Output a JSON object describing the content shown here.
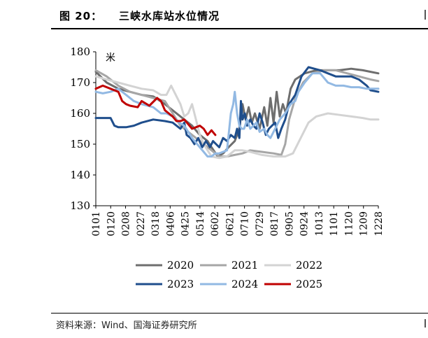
{
  "figure": {
    "label": "图 20：",
    "title": "三峡水库站水位情况",
    "source": "资料来源：Wind、国海证券研究所"
  },
  "chart_data": {
    "type": "line",
    "title": "三峡水库站水位情况",
    "unit": "米",
    "ylabel": "米",
    "xlabel": "",
    "ylim": [
      130,
      180
    ],
    "yticks": [
      130,
      140,
      150,
      160,
      170,
      180
    ],
    "xticks": [
      "0101",
      "0120",
      "0208",
      "0227",
      "0318",
      "0406",
      "0425",
      "0514",
      "0602",
      "0621",
      "0710",
      "0729",
      "0817",
      "0905",
      "0924",
      "1013",
      "1101",
      "1120",
      "1209",
      "1228"
    ],
    "x_domain": [
      1,
      365
    ],
    "legend_position": "bottom",
    "colors": {
      "2020": "#6e6e6e",
      "2021": "#a6a6a6",
      "2022": "#d3d3d3",
      "2023": "#1f4e8c",
      "2024": "#92b9e3",
      "2025": "#c00000"
    },
    "series": [
      {
        "name": "2020",
        "points": [
          [
            1,
            173.5
          ],
          [
            15,
            170
          ],
          [
            30,
            168
          ],
          [
            45,
            167
          ],
          [
            60,
            166
          ],
          [
            75,
            165.5
          ],
          [
            90,
            163
          ],
          [
            105,
            160
          ],
          [
            115,
            158
          ],
          [
            125,
            156
          ],
          [
            135,
            153
          ],
          [
            145,
            151
          ],
          [
            150,
            149
          ],
          [
            158,
            146
          ],
          [
            165,
            147
          ],
          [
            172,
            149
          ],
          [
            180,
            151
          ],
          [
            186,
            155
          ],
          [
            190,
            163
          ],
          [
            194,
            158
          ],
          [
            198,
            162
          ],
          [
            202,
            157
          ],
          [
            206,
            160
          ],
          [
            212,
            155
          ],
          [
            218,
            162
          ],
          [
            222,
            156
          ],
          [
            226,
            165
          ],
          [
            230,
            157
          ],
          [
            234,
            167
          ],
          [
            238,
            159
          ],
          [
            242,
            163
          ],
          [
            246,
            160
          ],
          [
            252,
            168
          ],
          [
            258,
            171
          ],
          [
            270,
            173
          ],
          [
            285,
            174
          ],
          [
            300,
            174
          ],
          [
            315,
            174
          ],
          [
            330,
            174.5
          ],
          [
            345,
            174
          ],
          [
            355,
            173.5
          ],
          [
            365,
            173
          ]
        ]
      },
      {
        "name": "2021",
        "points": [
          [
            1,
            174
          ],
          [
            15,
            172
          ],
          [
            30,
            169
          ],
          [
            45,
            167
          ],
          [
            60,
            166
          ],
          [
            75,
            165
          ],
          [
            90,
            164
          ],
          [
            100,
            160
          ],
          [
            110,
            156
          ],
          [
            120,
            154
          ],
          [
            130,
            152
          ],
          [
            140,
            150
          ],
          [
            150,
            148
          ],
          [
            160,
            146
          ],
          [
            170,
            146
          ],
          [
            180,
            146.5
          ],
          [
            190,
            147
          ],
          [
            200,
            148
          ],
          [
            215,
            147.5
          ],
          [
            230,
            147
          ],
          [
            240,
            146.5
          ],
          [
            245,
            150
          ],
          [
            250,
            158
          ],
          [
            258,
            165
          ],
          [
            268,
            170
          ],
          [
            280,
            173
          ],
          [
            295,
            174
          ],
          [
            310,
            174
          ],
          [
            325,
            173
          ],
          [
            340,
            172
          ],
          [
            355,
            171
          ],
          [
            365,
            170.5
          ]
        ]
      },
      {
        "name": "2022",
        "points": [
          [
            1,
            172
          ],
          [
            15,
            171
          ],
          [
            30,
            170
          ],
          [
            45,
            169
          ],
          [
            60,
            168
          ],
          [
            75,
            167.5
          ],
          [
            85,
            166
          ],
          [
            92,
            166
          ],
          [
            98,
            169
          ],
          [
            102,
            167
          ],
          [
            110,
            163
          ],
          [
            115,
            159
          ],
          [
            120,
            160
          ],
          [
            125,
            163
          ],
          [
            130,
            158
          ],
          [
            135,
            153
          ],
          [
            140,
            150
          ],
          [
            145,
            148
          ],
          [
            150,
            146
          ],
          [
            160,
            145.5
          ],
          [
            170,
            146
          ],
          [
            180,
            148
          ],
          [
            190,
            148
          ],
          [
            200,
            147.5
          ],
          [
            215,
            146.5
          ],
          [
            230,
            146
          ],
          [
            245,
            146
          ],
          [
            255,
            147
          ],
          [
            265,
            152
          ],
          [
            275,
            157
          ],
          [
            285,
            159
          ],
          [
            300,
            160
          ],
          [
            315,
            159.5
          ],
          [
            330,
            159
          ],
          [
            345,
            158.5
          ],
          [
            355,
            158
          ],
          [
            365,
            158
          ]
        ]
      },
      {
        "name": "2023",
        "points": [
          [
            1,
            158.5
          ],
          [
            10,
            158.5
          ],
          [
            20,
            158.5
          ],
          [
            25,
            156
          ],
          [
            30,
            155.5
          ],
          [
            40,
            155.5
          ],
          [
            50,
            156
          ],
          [
            60,
            157
          ],
          [
            75,
            158
          ],
          [
            90,
            157.5
          ],
          [
            100,
            157
          ],
          [
            110,
            155
          ],
          [
            115,
            157
          ],
          [
            118,
            153
          ],
          [
            123,
            152
          ],
          [
            128,
            150
          ],
          [
            133,
            152
          ],
          [
            138,
            149
          ],
          [
            143,
            151
          ],
          [
            148,
            149
          ],
          [
            152,
            151
          ],
          [
            156,
            150
          ],
          [
            160,
            149
          ],
          [
            165,
            152
          ],
          [
            170,
            151
          ],
          [
            175,
            153
          ],
          [
            180,
            152
          ],
          [
            183,
            155
          ],
          [
            186,
            152
          ],
          [
            188,
            164
          ],
          [
            190,
            158
          ],
          [
            193,
            160
          ],
          [
            196,
            156
          ],
          [
            200,
            158
          ],
          [
            204,
            156
          ],
          [
            208,
            155
          ],
          [
            212,
            160
          ],
          [
            216,
            157
          ],
          [
            220,
            153
          ],
          [
            224,
            155
          ],
          [
            228,
            156
          ],
          [
            232,
            157
          ],
          [
            236,
            152
          ],
          [
            240,
            155
          ],
          [
            245,
            158
          ],
          [
            250,
            163
          ],
          [
            258,
            166
          ],
          [
            266,
            172
          ],
          [
            275,
            175
          ],
          [
            290,
            174
          ],
          [
            300,
            173
          ],
          [
            310,
            172
          ],
          [
            320,
            172
          ],
          [
            330,
            172
          ],
          [
            340,
            171
          ],
          [
            350,
            169
          ],
          [
            355,
            167.5
          ],
          [
            365,
            167
          ]
        ]
      },
      {
        "name": "2024",
        "points": [
          [
            1,
            167
          ],
          [
            10,
            166.5
          ],
          [
            20,
            167
          ],
          [
            30,
            168
          ],
          [
            40,
            166
          ],
          [
            50,
            164
          ],
          [
            60,
            163
          ],
          [
            75,
            162
          ],
          [
            85,
            160
          ],
          [
            92,
            160
          ],
          [
            100,
            159
          ],
          [
            108,
            157
          ],
          [
            115,
            156
          ],
          [
            125,
            152
          ],
          [
            135,
            149
          ],
          [
            145,
            146
          ],
          [
            150,
            146
          ],
          [
            155,
            147
          ],
          [
            160,
            147
          ],
          [
            165,
            147.5
          ],
          [
            170,
            148
          ],
          [
            175,
            160
          ],
          [
            178,
            163
          ],
          [
            180,
            167
          ],
          [
            183,
            160
          ],
          [
            186,
            156
          ],
          [
            189,
            155
          ],
          [
            192,
            155
          ],
          [
            196,
            158
          ],
          [
            200,
            155
          ],
          [
            204,
            156
          ],
          [
            208,
            157
          ],
          [
            212,
            154
          ],
          [
            218,
            155
          ],
          [
            222,
            153
          ],
          [
            226,
            152
          ],
          [
            232,
            155
          ],
          [
            238,
            158
          ],
          [
            245,
            160
          ],
          [
            252,
            163
          ],
          [
            258,
            164
          ],
          [
            262,
            167
          ],
          [
            270,
            170
          ],
          [
            280,
            173
          ],
          [
            290,
            173
          ],
          [
            300,
            170
          ],
          [
            310,
            169
          ],
          [
            320,
            169
          ],
          [
            330,
            168.5
          ],
          [
            340,
            168.5
          ],
          [
            350,
            168
          ],
          [
            360,
            168
          ],
          [
            365,
            168
          ]
        ]
      },
      {
        "name": "2025",
        "points": [
          [
            1,
            168
          ],
          [
            10,
            169
          ],
          [
            20,
            168
          ],
          [
            30,
            167
          ],
          [
            35,
            164
          ],
          [
            40,
            163
          ],
          [
            45,
            162.5
          ],
          [
            55,
            162
          ],
          [
            60,
            164
          ],
          [
            70,
            162.5
          ],
          [
            80,
            165
          ],
          [
            85,
            164
          ],
          [
            90,
            161
          ],
          [
            95,
            160
          ],
          [
            100,
            159
          ],
          [
            105,
            157.5
          ],
          [
            110,
            157.5
          ],
          [
            115,
            158
          ],
          [
            120,
            156.5
          ],
          [
            125,
            155
          ],
          [
            130,
            155.5
          ],
          [
            135,
            156
          ],
          [
            140,
            155
          ],
          [
            145,
            153
          ],
          [
            150,
            154.5
          ],
          [
            155,
            153
          ]
        ]
      }
    ]
  }
}
